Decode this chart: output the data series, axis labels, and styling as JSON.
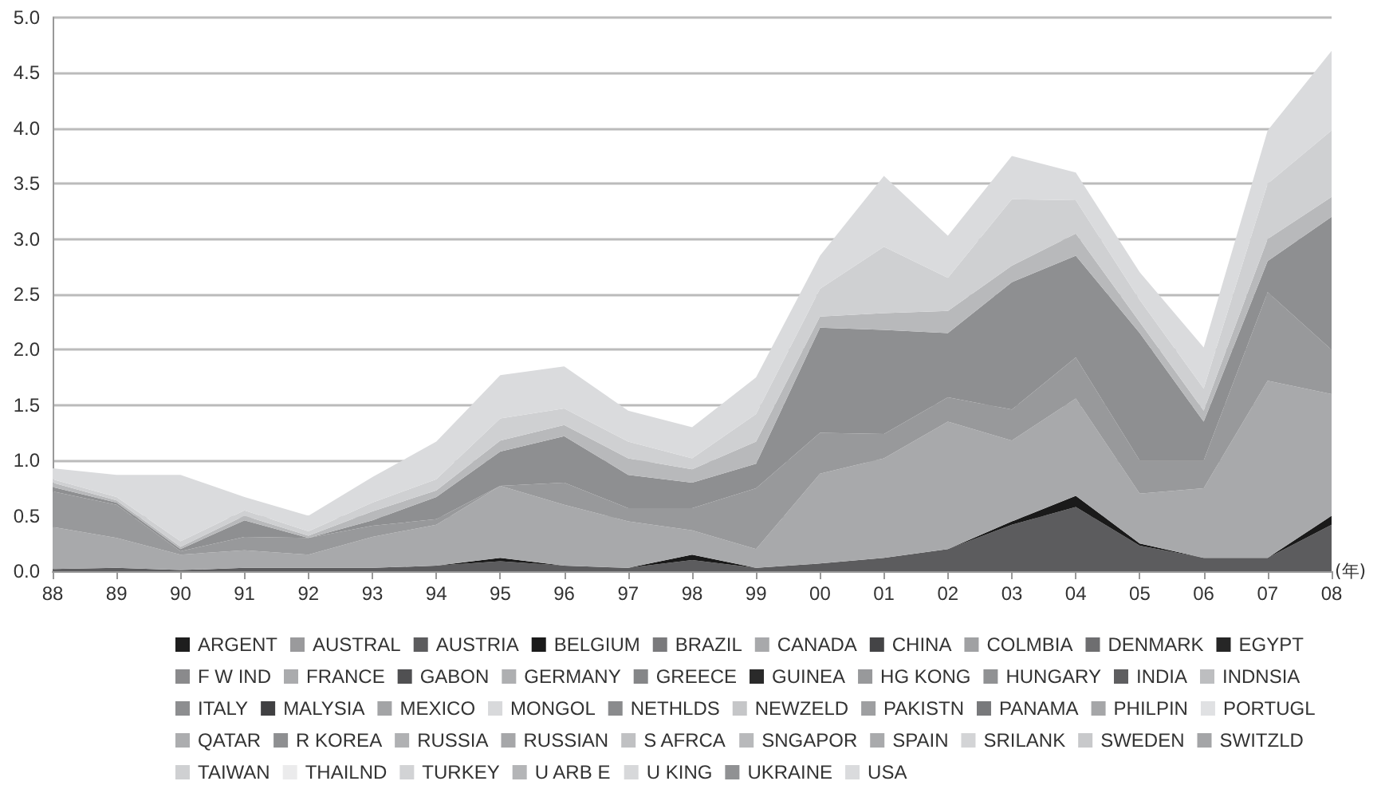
{
  "chart_data": {
    "type": "area",
    "stacked": true,
    "xlabel": "(年)",
    "categories": [
      "88",
      "89",
      "90",
      "91",
      "92",
      "93",
      "94",
      "95",
      "96",
      "97",
      "98",
      "99",
      "00",
      "01",
      "02",
      "03",
      "04",
      "05",
      "06",
      "07",
      "08"
    ],
    "ylim": [
      0,
      5
    ],
    "yticks": [
      {
        "value": 0,
        "label": "0.0"
      },
      {
        "value": 0.5,
        "label": "0.5"
      },
      {
        "value": 1,
        "label": "1.0"
      },
      {
        "value": 1.5,
        "label": "1.5"
      },
      {
        "value": 2,
        "label": "2.0"
      },
      {
        "value": 2.5,
        "label": "2.5"
      },
      {
        "value": 3,
        "label": "3.0"
      },
      {
        "value": 3.5,
        "label": "3.5"
      },
      {
        "value": 4,
        "label": "4.0"
      },
      {
        "value": 4.5,
        "label": "4.5"
      },
      {
        "value": 5,
        "label": "5.0"
      }
    ],
    "grid": "y",
    "legend": "bottom",
    "marker": "none",
    "series": [
      {
        "name": "ARGENT",
        "color": "#1e1e1e",
        "values": [
          null,
          null,
          null,
          null,
          null,
          null,
          null,
          null,
          null,
          null,
          null,
          null,
          null,
          null,
          null,
          null,
          null,
          null,
          null,
          null,
          null
        ]
      },
      {
        "name": "AUSTRAL",
        "color": "#9a9a9c",
        "values": [
          null,
          null,
          null,
          null,
          null,
          null,
          null,
          null,
          null,
          null,
          null,
          null,
          null,
          null,
          null,
          null,
          null,
          null,
          null,
          null,
          null
        ]
      },
      {
        "name": "AUSTRIA",
        "color": "#5c5c5e",
        "values": [
          0.02,
          0.03,
          0.01,
          0.03,
          0.03,
          0.03,
          0.05,
          0.09,
          0.05,
          0.03,
          0.1,
          0.03,
          0.07,
          0.12,
          0.2,
          0.42,
          0.58,
          0.23,
          0.12,
          0.12,
          0.42
        ]
      },
      {
        "name": "BELGIUM",
        "color": "#1a1a1a",
        "values": [
          0,
          0,
          0,
          0,
          0,
          0,
          0,
          0.03,
          0,
          0,
          0.05,
          0,
          0,
          0,
          0,
          0.03,
          0.1,
          0.02,
          0,
          0,
          0.08
        ]
      },
      {
        "name": "BRAZIL",
        "color": "#7a7a7c",
        "values": [
          null,
          null,
          null,
          null,
          null,
          null,
          null,
          null,
          null,
          null,
          null,
          null,
          null,
          null,
          null,
          null,
          null,
          null,
          null,
          null,
          null
        ]
      },
      {
        "name": "CANADA",
        "color": "#a8a9ab",
        "values": [
          0.38,
          0.27,
          0.14,
          0.16,
          0.12,
          0.28,
          0.37,
          0.65,
          0.55,
          0.42,
          0.22,
          0.17,
          0.81,
          0.9,
          1.15,
          0.73,
          0.88,
          0.45,
          0.63,
          1.6,
          1.1
        ]
      },
      {
        "name": "CHINA",
        "color": "#444446",
        "values": [
          null,
          null,
          null,
          null,
          null,
          null,
          null,
          null,
          null,
          null,
          null,
          null,
          null,
          null,
          null,
          null,
          null,
          null,
          null,
          null,
          null
        ]
      },
      {
        "name": "COLMBIA",
        "color": "#a0a1a3",
        "values": [
          null,
          null,
          null,
          null,
          null,
          null,
          null,
          null,
          null,
          null,
          null,
          null,
          null,
          null,
          null,
          null,
          null,
          null,
          null,
          null,
          null
        ]
      },
      {
        "name": "DENMARK",
        "color": "#6e6e70",
        "values": [
          null,
          null,
          null,
          null,
          null,
          null,
          null,
          null,
          null,
          null,
          null,
          null,
          null,
          null,
          null,
          null,
          null,
          null,
          null,
          null,
          null
        ]
      },
      {
        "name": "EGYPT",
        "color": "#262626",
        "values": [
          null,
          null,
          null,
          null,
          null,
          null,
          null,
          null,
          null,
          null,
          null,
          null,
          null,
          null,
          null,
          null,
          null,
          null,
          null,
          null,
          null
        ]
      },
      {
        "name": "F W IND",
        "color": "#8a8a8c",
        "values": [
          null,
          null,
          null,
          null,
          null,
          null,
          null,
          null,
          null,
          null,
          null,
          null,
          null,
          null,
          null,
          null,
          null,
          null,
          null,
          null,
          null
        ]
      },
      {
        "name": "FRANCE",
        "color": "#aaabad",
        "values": [
          null,
          null,
          null,
          null,
          null,
          null,
          null,
          null,
          null,
          null,
          null,
          null,
          null,
          null,
          null,
          null,
          null,
          null,
          null,
          null,
          null
        ]
      },
      {
        "name": "GABON",
        "color": "#505052",
        "values": [
          null,
          null,
          null,
          null,
          null,
          null,
          null,
          null,
          null,
          null,
          null,
          null,
          null,
          null,
          null,
          null,
          null,
          null,
          null,
          null,
          null
        ]
      },
      {
        "name": "GERMANY",
        "color": "#aeafb1",
        "values": [
          null,
          null,
          null,
          null,
          null,
          null,
          null,
          null,
          null,
          null,
          null,
          null,
          null,
          null,
          null,
          null,
          null,
          null,
          null,
          null,
          null
        ]
      },
      {
        "name": "GREECE",
        "color": "#858688",
        "values": [
          null,
          null,
          null,
          null,
          null,
          null,
          null,
          null,
          null,
          null,
          null,
          null,
          null,
          null,
          null,
          null,
          null,
          null,
          null,
          null,
          null
        ]
      },
      {
        "name": "GUINEA",
        "color": "#2a2a2a",
        "values": [
          null,
          null,
          null,
          null,
          null,
          null,
          null,
          null,
          null,
          null,
          null,
          null,
          null,
          null,
          null,
          null,
          null,
          null,
          null,
          null,
          null
        ]
      },
      {
        "name": "HG KONG",
        "color": "#98999b",
        "values": [
          0.32,
          0.3,
          0.03,
          0.12,
          0.15,
          0.1,
          0.05,
          0,
          0.2,
          0.12,
          0.2,
          0.55,
          0.37,
          0.22,
          0.22,
          0.28,
          0.37,
          0.3,
          0.25,
          0.8,
          0.4
        ]
      },
      {
        "name": "HUNGARY",
        "color": "#909193",
        "values": [
          null,
          null,
          null,
          null,
          null,
          null,
          null,
          null,
          null,
          null,
          null,
          null,
          null,
          null,
          null,
          null,
          null,
          null,
          null,
          null,
          null
        ]
      },
      {
        "name": "INDIA",
        "color": "#5e5e60",
        "values": [
          null,
          null,
          null,
          null,
          null,
          null,
          null,
          null,
          null,
          null,
          null,
          null,
          null,
          null,
          null,
          null,
          null,
          null,
          null,
          null,
          null
        ]
      },
      {
        "name": "INDNSIA",
        "color": "#bdbec0",
        "values": [
          null,
          null,
          null,
          null,
          null,
          null,
          null,
          null,
          null,
          null,
          null,
          null,
          null,
          null,
          null,
          null,
          null,
          null,
          null,
          null,
          null
        ]
      },
      {
        "name": "ITALY",
        "color": "#8d8e90",
        "values": [
          null,
          null,
          null,
          null,
          null,
          null,
          null,
          null,
          null,
          null,
          null,
          null,
          null,
          null,
          null,
          null,
          null,
          null,
          null,
          null,
          null
        ]
      },
      {
        "name": "MALYSIA",
        "color": "#404042",
        "values": [
          null,
          null,
          null,
          null,
          null,
          null,
          null,
          null,
          null,
          null,
          null,
          null,
          null,
          null,
          null,
          null,
          null,
          null,
          null,
          null,
          null
        ]
      },
      {
        "name": "MEXICO",
        "color": "#a3a4a6",
        "values": [
          null,
          null,
          null,
          null,
          null,
          null,
          null,
          null,
          null,
          null,
          null,
          null,
          null,
          null,
          null,
          null,
          null,
          null,
          null,
          null,
          null
        ]
      },
      {
        "name": "MONGOL",
        "color": "#d8d9db",
        "values": [
          null,
          null,
          null,
          null,
          null,
          null,
          null,
          null,
          null,
          null,
          null,
          null,
          null,
          null,
          null,
          null,
          null,
          null,
          null,
          null,
          null
        ]
      },
      {
        "name": "NETHLDS",
        "color": "#8a8b8d",
        "values": [
          null,
          null,
          null,
          null,
          null,
          null,
          null,
          null,
          null,
          null,
          null,
          null,
          null,
          null,
          null,
          null,
          null,
          null,
          null,
          null,
          null
        ]
      },
      {
        "name": "NEWZELD",
        "color": "#c5c6c8",
        "values": [
          null,
          null,
          null,
          null,
          null,
          null,
          null,
          null,
          null,
          null,
          null,
          null,
          null,
          null,
          null,
          null,
          null,
          null,
          null,
          null,
          null
        ]
      },
      {
        "name": "PAKISTN",
        "color": "#9e9fa1",
        "values": [
          null,
          null,
          null,
          null,
          null,
          null,
          null,
          null,
          null,
          null,
          null,
          null,
          null,
          null,
          null,
          null,
          null,
          null,
          null,
          null,
          null
        ]
      },
      {
        "name": "PANAMA",
        "color": "#78797b",
        "values": [
          null,
          null,
          null,
          null,
          null,
          null,
          null,
          null,
          null,
          null,
          null,
          null,
          null,
          null,
          null,
          null,
          null,
          null,
          null,
          null,
          null
        ]
      },
      {
        "name": "PHILPIN",
        "color": "#a5a6a8",
        "values": [
          null,
          null,
          null,
          null,
          null,
          null,
          null,
          null,
          null,
          null,
          null,
          null,
          null,
          null,
          null,
          null,
          null,
          null,
          null,
          null,
          null
        ]
      },
      {
        "name": "PORTUGL",
        "color": "#e0e1e3",
        "values": [
          null,
          null,
          null,
          null,
          null,
          null,
          null,
          null,
          null,
          null,
          null,
          null,
          null,
          null,
          null,
          null,
          null,
          null,
          null,
          null,
          null
        ]
      },
      {
        "name": "QATAR",
        "color": "#acadaf",
        "values": [
          null,
          null,
          null,
          null,
          null,
          null,
          null,
          null,
          null,
          null,
          null,
          null,
          null,
          null,
          null,
          null,
          null,
          null,
          null,
          null,
          null
        ]
      },
      {
        "name": "R KOREA",
        "color": "#8e8f91",
        "values": [
          0.04,
          0.02,
          0.02,
          0.15,
          0,
          0.05,
          0.2,
          0.31,
          0.42,
          0.3,
          0.23,
          0.22,
          0.95,
          0.94,
          0.58,
          1.15,
          0.92,
          1.15,
          0.35,
          0.28,
          1.2
        ]
      },
      {
        "name": "RUSSIA",
        "color": "#b0b1b3",
        "values": [
          null,
          null,
          null,
          null,
          null,
          null,
          null,
          null,
          null,
          null,
          null,
          null,
          null,
          null,
          null,
          null,
          null,
          null,
          null,
          null,
          null
        ]
      },
      {
        "name": "RUSSIAN",
        "color": "#a6a7a9",
        "values": [
          null,
          null,
          null,
          null,
          null,
          null,
          null,
          null,
          null,
          null,
          null,
          null,
          null,
          null,
          null,
          null,
          null,
          null,
          null,
          null,
          null
        ]
      },
      {
        "name": "S AFRCA",
        "color": "#c0c1c3",
        "values": [
          null,
          null,
          null,
          null,
          null,
          null,
          null,
          null,
          null,
          null,
          null,
          null,
          null,
          null,
          null,
          null,
          null,
          null,
          null,
          null,
          null
        ]
      },
      {
        "name": "SNGAPOR",
        "color": "#b8b9bb",
        "values": [
          0.04,
          0.02,
          0.02,
          0.04,
          0.02,
          0.08,
          0.06,
          0.1,
          0.1,
          0.15,
          0.12,
          0.2,
          0.1,
          0.15,
          0.2,
          0.15,
          0.2,
          0.1,
          0.1,
          0.2,
          0.18
        ]
      },
      {
        "name": "SPAIN",
        "color": "#a9aaac",
        "values": [
          null,
          null,
          null,
          null,
          null,
          null,
          null,
          null,
          null,
          null,
          null,
          null,
          null,
          null,
          null,
          null,
          null,
          null,
          null,
          null,
          null
        ]
      },
      {
        "name": "SRILANK",
        "color": "#d3d4d6",
        "values": [
          null,
          null,
          null,
          null,
          null,
          null,
          null,
          null,
          null,
          null,
          null,
          null,
          null,
          null,
          null,
          null,
          null,
          null,
          null,
          null,
          null
        ]
      },
      {
        "name": "SWEDEN",
        "color": "#c8c9cb",
        "values": [
          null,
          null,
          null,
          null,
          null,
          null,
          null,
          null,
          null,
          null,
          null,
          null,
          null,
          null,
          null,
          null,
          null,
          null,
          null,
          null,
          null
        ]
      },
      {
        "name": "SWITZLD",
        "color": "#a4a5a7",
        "values": [
          null,
          null,
          null,
          null,
          null,
          null,
          null,
          null,
          null,
          null,
          null,
          null,
          null,
          null,
          null,
          null,
          null,
          null,
          null,
          null,
          null
        ]
      },
      {
        "name": "TAIWAN",
        "color": "#cfd0d2",
        "values": [
          0.03,
          0.03,
          0.05,
          0.05,
          0.04,
          0.08,
          0.1,
          0.2,
          0.15,
          0.15,
          0.1,
          0.25,
          0.25,
          0.6,
          0.3,
          0.6,
          0.3,
          0.2,
          0.2,
          0.5,
          0.6
        ]
      },
      {
        "name": "THAILND",
        "color": "#ebebec",
        "values": [
          null,
          null,
          null,
          null,
          null,
          null,
          null,
          null,
          null,
          null,
          null,
          null,
          null,
          null,
          null,
          null,
          null,
          null,
          null,
          null,
          null
        ]
      },
      {
        "name": "TURKEY",
        "color": "#d2d3d5",
        "values": [
          null,
          null,
          null,
          null,
          null,
          null,
          null,
          null,
          null,
          null,
          null,
          null,
          null,
          null,
          null,
          null,
          null,
          null,
          null,
          null,
          null
        ]
      },
      {
        "name": "U ARB E",
        "color": "#b4b5b7",
        "values": [
          null,
          null,
          null,
          null,
          null,
          null,
          null,
          null,
          null,
          null,
          null,
          null,
          null,
          null,
          null,
          null,
          null,
          null,
          null,
          null,
          null
        ]
      },
      {
        "name": "U KING",
        "color": "#d7d8da",
        "values": [
          null,
          null,
          null,
          null,
          null,
          null,
          null,
          null,
          null,
          null,
          null,
          null,
          null,
          null,
          null,
          null,
          null,
          null,
          null,
          null,
          null
        ]
      },
      {
        "name": "UKRAINE",
        "color": "#909193",
        "values": [
          null,
          null,
          null,
          null,
          null,
          null,
          null,
          null,
          null,
          null,
          null,
          null,
          null,
          null,
          null,
          null,
          null,
          null,
          null,
          null,
          null
        ]
      },
      {
        "name": "USA",
        "color": "#dadbdd",
        "values": [
          0.1,
          0.2,
          0.6,
          0.12,
          0.14,
          0.23,
          0.34,
          0.39,
          0.38,
          0.28,
          0.28,
          0.33,
          0.3,
          0.64,
          0.38,
          0.39,
          0.25,
          0.25,
          0.37,
          0.48,
          0.72
        ]
      }
    ]
  }
}
